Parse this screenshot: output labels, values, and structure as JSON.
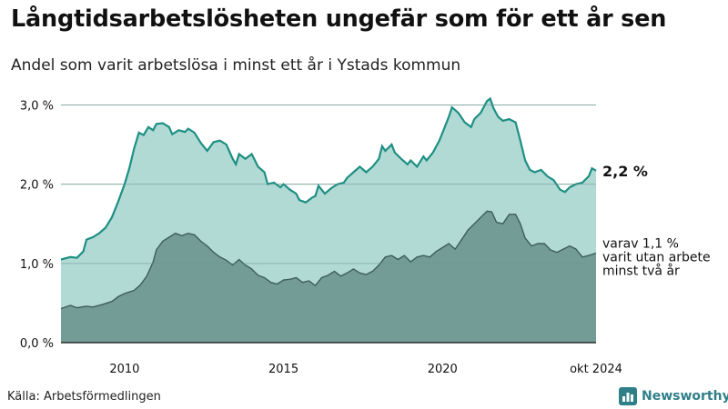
{
  "title": "Långtidsarbetslösheten ungefär som för ett år sen",
  "subtitle": "Andel som varit arbetslösa i minst ett år i Ystads kommun",
  "source": "Källa: Arbetsförmedlingen",
  "logo": {
    "name": "Newsworthy"
  },
  "colors": {
    "total_fill": "#a4d4ce",
    "total_line": "#1e8f83",
    "sub_fill": "#739c96",
    "sub_line": "#3d5e59",
    "grid": "#9bbab5",
    "brand": "#2e7f88"
  },
  "chart_data": {
    "type": "area",
    "title": "Långtidsarbetslösheten ungefär som för ett år sen",
    "xlabel": "",
    "ylabel": "",
    "xlim": [
      2008.0,
      2024.83
    ],
    "ylim": [
      0,
      3.2
    ],
    "y_ticks": [
      0,
      1,
      2,
      3
    ],
    "y_tick_labels": [
      "0,0 %",
      "1,0 %",
      "2,0 %",
      "3,0 %"
    ],
    "x_ticks": [
      {
        "x": 2010,
        "label": "2010"
      },
      {
        "x": 2015,
        "label": "2015"
      },
      {
        "x": 2020,
        "label": "2020"
      },
      {
        "x": 2024.83,
        "label": "okt 2024"
      }
    ],
    "series": [
      {
        "name": "Minst ett år",
        "end_label": "2,2 %",
        "points": [
          [
            2008.0,
            1.05
          ],
          [
            2008.3,
            1.08
          ],
          [
            2008.5,
            1.07
          ],
          [
            2008.7,
            1.15
          ],
          [
            2008.8,
            1.3
          ],
          [
            2009.0,
            1.33
          ],
          [
            2009.2,
            1.38
          ],
          [
            2009.4,
            1.45
          ],
          [
            2009.6,
            1.58
          ],
          [
            2009.8,
            1.78
          ],
          [
            2010.0,
            2.0
          ],
          [
            2010.15,
            2.2
          ],
          [
            2010.3,
            2.45
          ],
          [
            2010.45,
            2.65
          ],
          [
            2010.6,
            2.62
          ],
          [
            2010.75,
            2.72
          ],
          [
            2010.9,
            2.68
          ],
          [
            2011.0,
            2.76
          ],
          [
            2011.2,
            2.77
          ],
          [
            2011.4,
            2.72
          ],
          [
            2011.5,
            2.63
          ],
          [
            2011.7,
            2.68
          ],
          [
            2011.9,
            2.66
          ],
          [
            2012.0,
            2.7
          ],
          [
            2012.2,
            2.65
          ],
          [
            2012.4,
            2.52
          ],
          [
            2012.6,
            2.42
          ],
          [
            2012.8,
            2.53
          ],
          [
            2013.0,
            2.55
          ],
          [
            2013.2,
            2.5
          ],
          [
            2013.4,
            2.32
          ],
          [
            2013.5,
            2.25
          ],
          [
            2013.6,
            2.38
          ],
          [
            2013.8,
            2.32
          ],
          [
            2014.0,
            2.38
          ],
          [
            2014.2,
            2.22
          ],
          [
            2014.4,
            2.15
          ],
          [
            2014.5,
            2.0
          ],
          [
            2014.7,
            2.02
          ],
          [
            2014.9,
            1.96
          ],
          [
            2015.0,
            2.0
          ],
          [
            2015.2,
            1.93
          ],
          [
            2015.4,
            1.88
          ],
          [
            2015.5,
            1.8
          ],
          [
            2015.7,
            1.77
          ],
          [
            2015.9,
            1.83
          ],
          [
            2016.0,
            1.85
          ],
          [
            2016.1,
            1.98
          ],
          [
            2016.3,
            1.88
          ],
          [
            2016.5,
            1.95
          ],
          [
            2016.7,
            2.0
          ],
          [
            2016.9,
            2.02
          ],
          [
            2017.0,
            2.08
          ],
          [
            2017.2,
            2.15
          ],
          [
            2017.4,
            2.22
          ],
          [
            2017.6,
            2.15
          ],
          [
            2017.8,
            2.22
          ],
          [
            2018.0,
            2.32
          ],
          [
            2018.1,
            2.48
          ],
          [
            2018.2,
            2.42
          ],
          [
            2018.4,
            2.5
          ],
          [
            2018.5,
            2.4
          ],
          [
            2018.7,
            2.32
          ],
          [
            2018.9,
            2.25
          ],
          [
            2019.0,
            2.3
          ],
          [
            2019.2,
            2.22
          ],
          [
            2019.4,
            2.35
          ],
          [
            2019.5,
            2.3
          ],
          [
            2019.7,
            2.4
          ],
          [
            2019.9,
            2.55
          ],
          [
            2020.0,
            2.65
          ],
          [
            2020.2,
            2.85
          ],
          [
            2020.3,
            2.97
          ],
          [
            2020.5,
            2.9
          ],
          [
            2020.7,
            2.78
          ],
          [
            2020.9,
            2.72
          ],
          [
            2021.0,
            2.82
          ],
          [
            2021.2,
            2.9
          ],
          [
            2021.4,
            3.05
          ],
          [
            2021.5,
            3.08
          ],
          [
            2021.6,
            2.96
          ],
          [
            2021.75,
            2.85
          ],
          [
            2021.9,
            2.8
          ],
          [
            2022.1,
            2.82
          ],
          [
            2022.3,
            2.78
          ],
          [
            2022.45,
            2.55
          ],
          [
            2022.6,
            2.3
          ],
          [
            2022.75,
            2.18
          ],
          [
            2022.9,
            2.15
          ],
          [
            2023.1,
            2.18
          ],
          [
            2023.3,
            2.1
          ],
          [
            2023.5,
            2.05
          ],
          [
            2023.7,
            1.93
          ],
          [
            2023.85,
            1.9
          ],
          [
            2024.0,
            1.96
          ],
          [
            2024.2,
            2.0
          ],
          [
            2024.4,
            2.02
          ],
          [
            2024.6,
            2.1
          ],
          [
            2024.7,
            2.2
          ],
          [
            2024.83,
            2.17
          ]
        ]
      },
      {
        "name": "Minst två år",
        "end_label_lines": [
          "varav 1,1 %",
          "varit utan arbete",
          "minst två år"
        ],
        "points": [
          [
            2008.0,
            0.43
          ],
          [
            2008.3,
            0.47
          ],
          [
            2008.5,
            0.44
          ],
          [
            2008.8,
            0.46
          ],
          [
            2009.0,
            0.45
          ],
          [
            2009.3,
            0.48
          ],
          [
            2009.6,
            0.52
          ],
          [
            2009.8,
            0.58
          ],
          [
            2010.0,
            0.62
          ],
          [
            2010.3,
            0.66
          ],
          [
            2010.5,
            0.73
          ],
          [
            2010.7,
            0.84
          ],
          [
            2010.9,
            1.02
          ],
          [
            2011.0,
            1.17
          ],
          [
            2011.2,
            1.28
          ],
          [
            2011.4,
            1.33
          ],
          [
            2011.6,
            1.38
          ],
          [
            2011.8,
            1.35
          ],
          [
            2012.0,
            1.38
          ],
          [
            2012.2,
            1.36
          ],
          [
            2012.4,
            1.28
          ],
          [
            2012.6,
            1.22
          ],
          [
            2012.8,
            1.14
          ],
          [
            2013.0,
            1.08
          ],
          [
            2013.2,
            1.04
          ],
          [
            2013.4,
            0.98
          ],
          [
            2013.6,
            1.05
          ],
          [
            2013.8,
            0.98
          ],
          [
            2014.0,
            0.93
          ],
          [
            2014.2,
            0.85
          ],
          [
            2014.4,
            0.82
          ],
          [
            2014.6,
            0.76
          ],
          [
            2014.8,
            0.74
          ],
          [
            2015.0,
            0.79
          ],
          [
            2015.2,
            0.8
          ],
          [
            2015.4,
            0.82
          ],
          [
            2015.6,
            0.76
          ],
          [
            2015.8,
            0.78
          ],
          [
            2016.0,
            0.72
          ],
          [
            2016.2,
            0.82
          ],
          [
            2016.4,
            0.85
          ],
          [
            2016.6,
            0.9
          ],
          [
            2016.8,
            0.84
          ],
          [
            2017.0,
            0.88
          ],
          [
            2017.2,
            0.93
          ],
          [
            2017.4,
            0.88
          ],
          [
            2017.6,
            0.86
          ],
          [
            2017.8,
            0.9
          ],
          [
            2018.0,
            0.98
          ],
          [
            2018.2,
            1.08
          ],
          [
            2018.4,
            1.1
          ],
          [
            2018.6,
            1.05
          ],
          [
            2018.8,
            1.1
          ],
          [
            2019.0,
            1.02
          ],
          [
            2019.2,
            1.08
          ],
          [
            2019.4,
            1.1
          ],
          [
            2019.6,
            1.08
          ],
          [
            2019.8,
            1.15
          ],
          [
            2020.0,
            1.2
          ],
          [
            2020.2,
            1.25
          ],
          [
            2020.4,
            1.18
          ],
          [
            2020.6,
            1.3
          ],
          [
            2020.8,
            1.42
          ],
          [
            2021.0,
            1.5
          ],
          [
            2021.2,
            1.58
          ],
          [
            2021.4,
            1.66
          ],
          [
            2021.55,
            1.65
          ],
          [
            2021.7,
            1.52
          ],
          [
            2021.9,
            1.5
          ],
          [
            2022.1,
            1.62
          ],
          [
            2022.3,
            1.62
          ],
          [
            2022.45,
            1.5
          ],
          [
            2022.6,
            1.32
          ],
          [
            2022.8,
            1.22
          ],
          [
            2023.0,
            1.25
          ],
          [
            2023.2,
            1.25
          ],
          [
            2023.4,
            1.17
          ],
          [
            2023.6,
            1.14
          ],
          [
            2023.8,
            1.18
          ],
          [
            2024.0,
            1.22
          ],
          [
            2024.2,
            1.18
          ],
          [
            2024.4,
            1.08
          ],
          [
            2024.6,
            1.1
          ],
          [
            2024.83,
            1.13
          ]
        ]
      }
    ]
  }
}
